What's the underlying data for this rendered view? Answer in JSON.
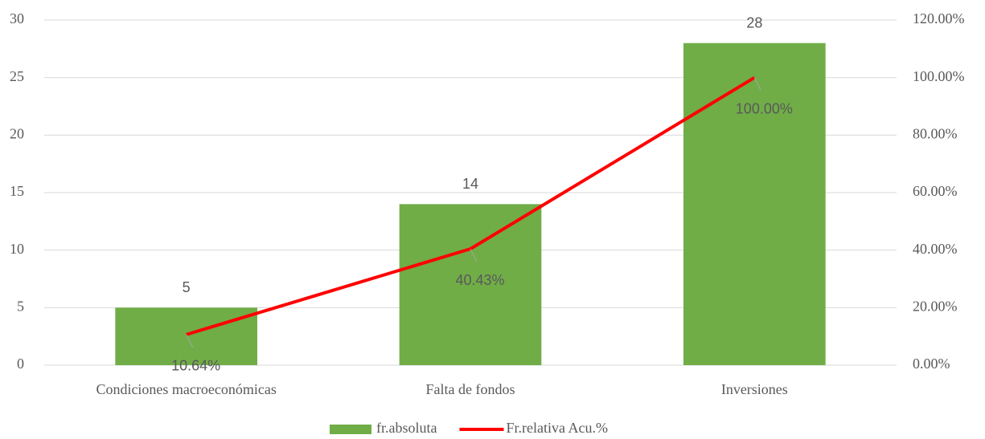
{
  "chart_data": {
    "type": "bar",
    "categories": [
      "Condiciones macroeconómicas",
      "Falta de fondos",
      "Inversiones"
    ],
    "series": [
      {
        "name": "fr.absoluta",
        "type": "bar",
        "color": "#70ad47",
        "values": [
          5,
          14,
          28
        ]
      },
      {
        "name": "Fr.relativa Acu.%",
        "type": "line",
        "axis": "y2",
        "color": "#ff0000",
        "values": [
          10.64,
          40.43,
          100
        ],
        "value_labels": [
          "10.64%",
          "40.43%",
          "100.00%"
        ]
      }
    ],
    "ylim": [
      0,
      30
    ],
    "yticks": [
      0,
      5,
      10,
      15,
      20,
      25,
      30
    ],
    "y2lim": [
      0,
      120
    ],
    "y2ticks": [
      {
        "value": 0,
        "label": "0.00%"
      },
      {
        "value": 20,
        "label": "20.00%"
      },
      {
        "value": 40,
        "label": "40.00%"
      },
      {
        "value": 60,
        "label": "60.00%"
      },
      {
        "value": 80,
        "label": "80.00%"
      },
      {
        "value": 100,
        "label": "100.00%"
      },
      {
        "value": 120,
        "label": "120.00%"
      }
    ],
    "grid": true,
    "legend": "bottom"
  }
}
